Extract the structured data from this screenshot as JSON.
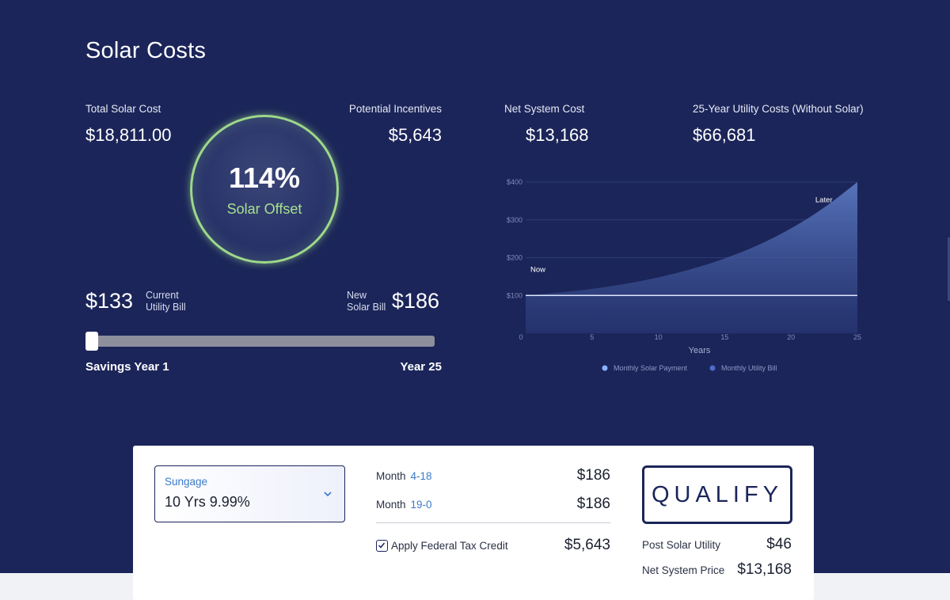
{
  "title": "Solar Costs",
  "stats": {
    "total_solar_cost_label": "Total Solar Cost",
    "total_solar_cost": "$18,811.00",
    "potential_incentives_label": "Potential Incentives",
    "potential_incentives": "$5,643",
    "net_system_cost_label": "Net System Cost",
    "net_system_cost": "$13,168",
    "utility_costs_label": "25-Year Utility Costs (Without Solar)",
    "utility_costs": "$66,681"
  },
  "offset": {
    "percent": "114%",
    "label": "Solar Offset"
  },
  "bills": {
    "current_value": "$133",
    "current_label_1": "Current",
    "current_label_2": "Utility Bill",
    "new_label_1": "New",
    "new_label_2": "Solar Bill",
    "new_value": "$186"
  },
  "slider": {
    "left_label": "Savings Year 1",
    "right_label": "Year 25",
    "value_year": 1,
    "min": 1,
    "max": 25
  },
  "chart_data": {
    "type": "area",
    "xlabel": "Years",
    "ylabel": "",
    "xlim": [
      0,
      25
    ],
    "ylim": [
      0,
      400
    ],
    "x_ticks": [
      "0",
      "5",
      "10",
      "15",
      "20",
      "25"
    ],
    "y_ticks": [
      "$100",
      "$200",
      "$300",
      "$400"
    ],
    "annotations": [
      "Now",
      "Later"
    ],
    "legend": [
      "Monthly Solar Payment",
      "Monthly Utility Bill"
    ],
    "series": [
      {
        "name": "Monthly Solar Payment",
        "x": [
          0,
          25
        ],
        "values": [
          100,
          100
        ]
      },
      {
        "name": "Monthly Utility Bill",
        "x": [
          0,
          2.5,
          5,
          7.5,
          10,
          12.5,
          15,
          17.5,
          20,
          22.5,
          25
        ],
        "values": [
          100,
          107,
          117,
          130,
          147,
          169,
          197,
          232,
          276,
          331,
          400
        ]
      }
    ],
    "grid": true,
    "legend_position": "bottom",
    "colors": {
      "solar": "#8fb0ff",
      "utility": "#4d6bc9",
      "area": "#4a62a8"
    }
  },
  "financing": {
    "select_label": "Sungage",
    "select_value": "10 Yrs 9.99%",
    "month_label": "Month",
    "row1_range": "4-18",
    "row1_value": "$186",
    "row2_range": "19-0",
    "row2_value": "$186",
    "tax_credit_label": "Apply Federal Tax Credit",
    "tax_credit_value": "$5,643",
    "tax_credit_checked": true
  },
  "summary": {
    "qualify_label": "QUALIFY",
    "post_solar_utility_label": "Post Solar Utility",
    "post_solar_utility_value": "$46",
    "net_system_price_label": "Net System Price",
    "net_system_price_value": "$13,168"
  }
}
